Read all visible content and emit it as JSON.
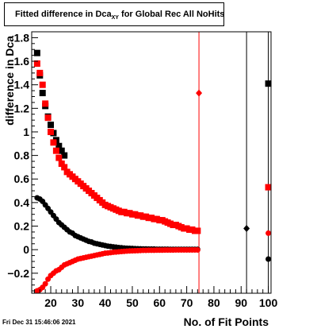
{
  "title": {
    "prefix": "Fitted difference in Dca",
    "sub": "XY",
    "suffix": " for Global Rec All NoHits"
  },
  "timestamp": "Fri Dec 31 15:46:06 2021",
  "chart_data": {
    "type": "scatter",
    "title": "Fitted difference in Dca_XY for Global Rec All NoHits",
    "xlabel": "No. of Fit Points",
    "ylabel": "difference in Dca",
    "xlim": [
      13,
      101
    ],
    "ylim": [
      -0.37,
      1.85
    ],
    "xticks": [
      20,
      30,
      40,
      50,
      60,
      70,
      80,
      90,
      100
    ],
    "yticks": [
      -0.2,
      0,
      0.2,
      0.4,
      0.6,
      0.8,
      1,
      1.2,
      1.4,
      1.6,
      1.8
    ],
    "ytick_labels": [
      "−0.2",
      "0",
      "0.2",
      "0.4",
      "0.6",
      "0.8",
      "1",
      "1.2",
      "1.4",
      "1.6",
      "1.8"
    ],
    "xtick_labels": [
      "20",
      "30",
      "40",
      "50",
      "60",
      "70",
      "80",
      "90",
      "100"
    ],
    "grid": false,
    "colors": {
      "black": "#000000",
      "red": "#ff0000"
    },
    "reference_lines": [
      {
        "x": 74.5,
        "color": "#ff0000"
      },
      {
        "x": 92,
        "color": "#000000"
      },
      {
        "x": 100,
        "color": "#000000"
      }
    ],
    "series": [
      {
        "marker": "square",
        "color": "#000000",
        "x": [
          15,
          16,
          17,
          18,
          19,
          20,
          21,
          22,
          23,
          24,
          25,
          100
        ],
        "y": [
          1.67,
          1.48,
          1.33,
          1.22,
          1.13,
          1.06,
          0.99,
          0.93,
          0.88,
          0.84,
          0.8,
          1.41
        ]
      },
      {
        "marker": "square",
        "color": "#ff0000",
        "x": [
          15,
          16,
          17,
          18,
          19,
          20,
          21,
          22,
          23,
          24,
          25,
          26,
          27,
          28,
          29,
          30,
          31,
          32,
          33,
          34,
          35,
          36,
          37,
          38,
          39,
          40,
          41,
          42,
          43,
          44,
          45,
          46,
          47,
          48,
          49,
          50,
          51,
          52,
          53,
          54,
          55,
          56,
          57,
          58,
          59,
          60,
          61,
          62,
          63,
          64,
          65,
          66,
          67,
          68,
          69,
          70,
          71,
          72,
          73,
          74,
          100
        ],
        "y": [
          1.58,
          1.5,
          1.4,
          1.24,
          1.12,
          1.0,
          0.91,
          0.84,
          0.78,
          0.73,
          0.7,
          0.66,
          0.64,
          0.62,
          0.6,
          0.58,
          0.56,
          0.54,
          0.52,
          0.5,
          0.48,
          0.46,
          0.44,
          0.42,
          0.4,
          0.38,
          0.37,
          0.36,
          0.35,
          0.34,
          0.33,
          0.32,
          0.32,
          0.31,
          0.31,
          0.3,
          0.3,
          0.29,
          0.29,
          0.28,
          0.28,
          0.27,
          0.27,
          0.26,
          0.26,
          0.25,
          0.25,
          0.24,
          0.23,
          0.22,
          0.21,
          0.21,
          0.2,
          0.19,
          0.18,
          0.18,
          0.17,
          0.17,
          0.16,
          0.16,
          0.53
        ]
      },
      {
        "marker": "circle",
        "color": "#000000",
        "x": [
          15,
          16,
          17,
          18,
          19,
          20,
          21,
          22,
          23,
          24,
          25,
          26,
          27,
          28,
          29,
          30,
          31,
          32,
          33,
          34,
          35,
          36,
          37,
          38,
          39,
          40,
          41,
          42,
          43,
          44,
          45,
          46,
          47,
          48,
          49,
          50,
          51,
          52,
          53,
          54,
          55,
          56,
          57,
          58,
          59,
          60,
          61,
          62,
          63,
          64,
          65,
          66,
          67,
          68,
          69,
          70,
          71,
          72,
          73,
          74,
          100
        ],
        "y": [
          0.44,
          0.43,
          0.41,
          0.38,
          0.35,
          0.32,
          0.29,
          0.26,
          0.23,
          0.21,
          0.19,
          0.17,
          0.15,
          0.14,
          0.12,
          0.11,
          0.1,
          0.09,
          0.08,
          0.07,
          0.065,
          0.055,
          0.05,
          0.045,
          0.04,
          0.035,
          0.03,
          0.027,
          0.024,
          0.021,
          0.018,
          0.016,
          0.014,
          0.012,
          0.011,
          0.01,
          0.009,
          0.008,
          0.007,
          0.006,
          0.006,
          0.005,
          0.005,
          0.005,
          0.004,
          0.004,
          0.004,
          0.004,
          0.004,
          0.003,
          0.003,
          0.003,
          0.003,
          0.003,
          0.003,
          0.003,
          0.003,
          0.003,
          0.003,
          0.003,
          -0.08
        ]
      },
      {
        "marker": "circle",
        "color": "#ff0000",
        "x": [
          15,
          16,
          17,
          18,
          19,
          20,
          21,
          22,
          23,
          24,
          25,
          26,
          27,
          28,
          29,
          30,
          31,
          32,
          33,
          34,
          35,
          36,
          37,
          38,
          39,
          40,
          41,
          42,
          43,
          44,
          45,
          46,
          47,
          48,
          49,
          50,
          51,
          52,
          53,
          54,
          55,
          56,
          57,
          58,
          59,
          60,
          61,
          62,
          63,
          64,
          65,
          66,
          67,
          68,
          69,
          70,
          71,
          72,
          73,
          74,
          100
        ],
        "y": [
          -0.35,
          -0.34,
          -0.32,
          -0.29,
          -0.25,
          -0.22,
          -0.2,
          -0.18,
          -0.17,
          -0.15,
          -0.13,
          -0.12,
          -0.11,
          -0.1,
          -0.09,
          -0.08,
          -0.075,
          -0.07,
          -0.065,
          -0.06,
          -0.055,
          -0.05,
          -0.045,
          -0.04,
          -0.035,
          -0.03,
          -0.028,
          -0.025,
          -0.022,
          -0.02,
          -0.018,
          -0.016,
          -0.014,
          -0.012,
          -0.011,
          -0.01,
          -0.009,
          -0.008,
          -0.007,
          -0.006,
          -0.006,
          -0.005,
          -0.005,
          -0.005,
          -0.004,
          -0.004,
          -0.004,
          -0.003,
          -0.003,
          -0.003,
          -0.003,
          -0.002,
          -0.002,
          -0.002,
          -0.002,
          -0.002,
          -0.002,
          -0.002,
          -0.002,
          -0.002,
          0.14
        ]
      },
      {
        "marker": "diamond",
        "color": "#ff0000",
        "x": [
          74.5
        ],
        "y": [
          1.33
        ]
      },
      {
        "marker": "diamond",
        "color": "#000000",
        "x": [
          92
        ],
        "y": [
          0.18
        ]
      }
    ]
  }
}
